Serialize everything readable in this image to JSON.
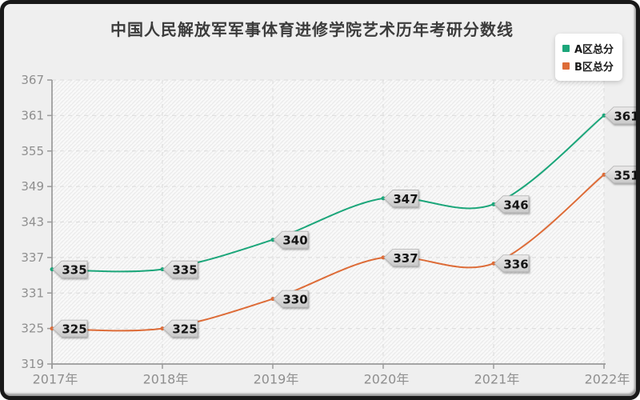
{
  "window": {
    "background": "#efefef",
    "frame_color": "#191919",
    "outer_background": "#ffffff"
  },
  "colors": {
    "series_a": "#1ca67a",
    "series_b": "#dd6c38",
    "plot_background": "#f9f9f9",
    "plot_hatch": "#ececec",
    "grid_line": "#dcdcdc",
    "axis_line": "#9a9a9a",
    "tick_text": "#8f8f8f",
    "title_text": "#3c3c3c",
    "label_tag_fill_top": "#ecebeb",
    "label_tag_fill_bottom": "#c9c9c9",
    "label_tag_border": "#b2b2b2",
    "label_tag_text": "#151515",
    "legend_background": "#ffffff",
    "legend_text": "#1a1a1a"
  },
  "chart_data": {
    "type": "line",
    "title": "中国人民解放军军事体育进修学院艺术历年考研分数线",
    "categories": [
      "2017年",
      "2018年",
      "2019年",
      "2020年",
      "2021年",
      "2022年"
    ],
    "series": [
      {
        "name": "A区总分",
        "color": "#1ca67a",
        "values": [
          335,
          335,
          340,
          347,
          346,
          361
        ]
      },
      {
        "name": "B区总分",
        "color": "#dd6c38",
        "values": [
          325,
          325,
          330,
          337,
          336,
          351
        ]
      }
    ],
    "xlabel": "",
    "ylabel": "",
    "ylim": [
      319,
      367
    ],
    "yticks": [
      319,
      325,
      331,
      337,
      343,
      349,
      355,
      361,
      367
    ],
    "grid": "dashed",
    "smooth": true,
    "point_labels_visible": true,
    "legend_position": "top-right"
  }
}
